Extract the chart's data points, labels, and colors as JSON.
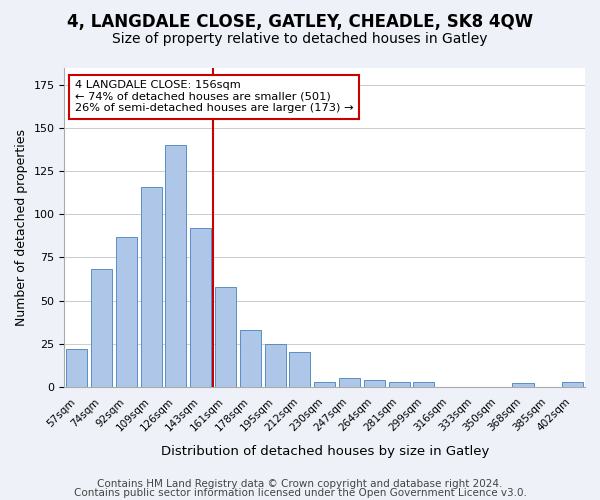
{
  "title": "4, LANGDALE CLOSE, GATLEY, CHEADLE, SK8 4QW",
  "subtitle": "Size of property relative to detached houses in Gatley",
  "xlabel": "Distribution of detached houses by size in Gatley",
  "ylabel": "Number of detached properties",
  "bar_labels": [
    "57sqm",
    "74sqm",
    "92sqm",
    "109sqm",
    "126sqm",
    "143sqm",
    "161sqm",
    "178sqm",
    "195sqm",
    "212sqm",
    "230sqm",
    "247sqm",
    "264sqm",
    "281sqm",
    "299sqm",
    "316sqm",
    "333sqm",
    "350sqm",
    "368sqm",
    "385sqm",
    "402sqm"
  ],
  "bar_values": [
    22,
    68,
    87,
    116,
    140,
    92,
    58,
    33,
    25,
    20,
    3,
    5,
    4,
    3,
    3,
    0,
    0,
    0,
    2,
    0,
    3
  ],
  "bar_color": "#aec6e8",
  "bar_edge_color": "#5a8fc2",
  "vline_x": 5.5,
  "vline_color": "#cc0000",
  "annotation_title": "4 LANGDALE CLOSE: 156sqm",
  "annotation_line1": "← 74% of detached houses are smaller (501)",
  "annotation_line2": "26% of semi-detached houses are larger (173) →",
  "annotation_box_color": "#ffffff",
  "annotation_box_edge": "#cc0000",
  "ylim": [
    0,
    185
  ],
  "footer1": "Contains HM Land Registry data © Crown copyright and database right 2024.",
  "footer2": "Contains public sector information licensed under the Open Government Licence v3.0.",
  "background_color": "#eef2f8",
  "plot_background_color": "#ffffff",
  "title_fontsize": 12,
  "subtitle_fontsize": 10,
  "footer_fontsize": 7.5
}
